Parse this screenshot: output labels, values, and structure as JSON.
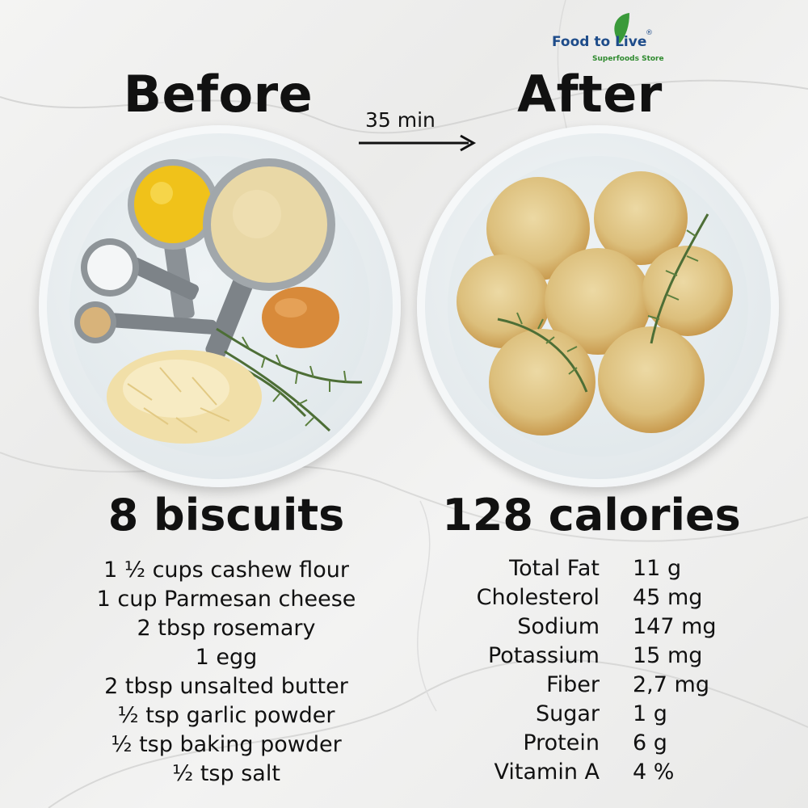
{
  "logo": {
    "brand": "Food to Live",
    "reg": "®",
    "tagline": "Superfoods Store"
  },
  "before": {
    "heading": "Before",
    "count": "8 biscuits"
  },
  "arrow": {
    "label": "35 min"
  },
  "after": {
    "heading": "After",
    "calories": "128 calories"
  },
  "ingredients": [
    "1 ½ cups cashew flour",
    "1 cup Parmesan cheese",
    "2 tbsp rosemary",
    "1 egg",
    "2 tbsp unsalted butter",
    "½ tsp garlic powder",
    "½ tsp baking powder",
    "½ tsp salt"
  ],
  "nutrition": [
    {
      "label": "Total Fat",
      "value": "11 g"
    },
    {
      "label": "Cholesterol",
      "value": "45 mg"
    },
    {
      "label": "Sodium",
      "value": "147 mg"
    },
    {
      "label": "Potassium",
      "value": "15 mg"
    },
    {
      "label": "Fiber",
      "value": "2,7 mg"
    },
    {
      "label": "Sugar",
      "value": "1 g"
    },
    {
      "label": "Protein",
      "value": "6 g"
    },
    {
      "label": "Vitamin A",
      "value": "4 %"
    }
  ]
}
